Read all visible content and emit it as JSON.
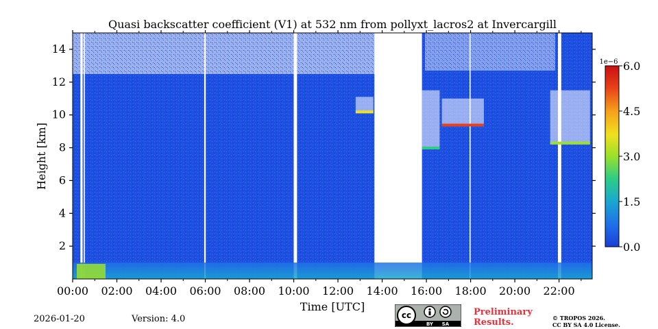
{
  "chart_data": {
    "type": "heatmap",
    "title": "Quasi backscatter coefficient (V1) at 532 nm from pollyxt_lacros2 at Invercargill",
    "xlabel": "Time [UTC]",
    "ylabel": "Height [km]",
    "x_unit": "hours UTC",
    "xlim": [
      0,
      23.5
    ],
    "ylim": [
      0,
      15
    ],
    "x_ticks": [
      0,
      2,
      4,
      6,
      8,
      10,
      12,
      14,
      16,
      18,
      20,
      22
    ],
    "x_tick_labels": [
      "00:00",
      "02:00",
      "04:00",
      "06:00",
      "08:00",
      "10:00",
      "12:00",
      "14:00",
      "16:00",
      "18:00",
      "20:00",
      "22:00"
    ],
    "y_ticks": [
      2,
      4,
      6,
      8,
      10,
      12,
      14
    ],
    "y_tick_labels": [
      "2",
      "4",
      "6",
      "8",
      "10",
      "12",
      "14"
    ],
    "colorbar": {
      "min": 0.0,
      "max": 6.0,
      "scale_label": "1e−6",
      "ticks": [
        0.0,
        1.5,
        3.0,
        4.5,
        6.0
      ],
      "tick_labels": [
        "0.0",
        "1.5",
        "3.0",
        "4.5",
        "6.0"
      ],
      "colormap": [
        "#1a3fd6",
        "#1f6fe8",
        "#1aa7cf",
        "#2fce84",
        "#9be02a",
        "#f0e020",
        "#f5a01a",
        "#e8401a",
        "#c81010"
      ]
    },
    "data_gaps_hours": [
      [
        0.35,
        0.45
      ],
      [
        0.5,
        0.55
      ],
      [
        5.95,
        6.02
      ],
      [
        10.0,
        10.15
      ],
      [
        13.65,
        15.8
      ],
      [
        17.95,
        18.0
      ],
      [
        21.95,
        22.1
      ]
    ],
    "cloud_layers": [
      {
        "start": 12.8,
        "end": 13.6,
        "base_km": 10.1,
        "top_km": 11.1
      },
      {
        "start": 15.8,
        "end": 16.6,
        "base_km": 7.9,
        "top_km": 11.5
      },
      {
        "start": 16.7,
        "end": 18.6,
        "base_km": 9.3,
        "top_km": 11.0
      },
      {
        "start": 21.6,
        "end": 23.4,
        "base_km": 8.2,
        "top_km": 11.5
      }
    ],
    "boundary_layer_top_km": 1.0
  },
  "footer": {
    "date": "2026-01-20",
    "version": "Version: 4.0",
    "preliminary_line1": "Preliminary",
    "preliminary_line2": "Results.",
    "copyright_line1": "© TROPOS 2026.",
    "copyright_line2": "CC BY SA 4.0 License.",
    "license_by": "BY",
    "license_sa": "SA",
    "license_cc": "cc"
  }
}
